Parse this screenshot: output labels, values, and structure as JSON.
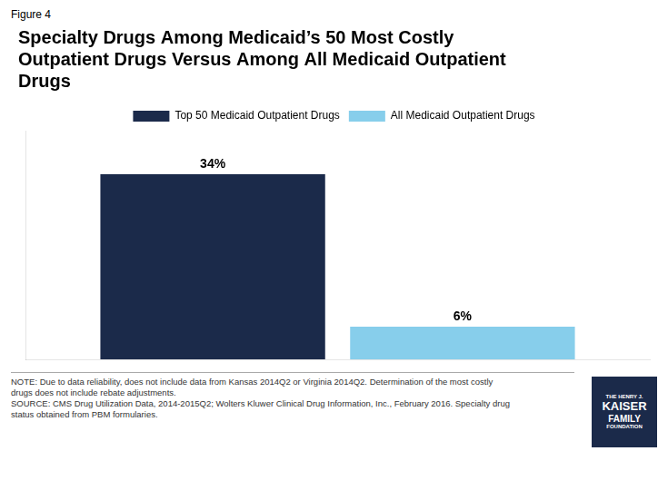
{
  "chart_data": {
    "type": "bar",
    "title": [
      "Specialty Drugs Among Medicaid’s 50 Most Costly",
      "Outpatient Drugs Versus Among All Medicaid Outpatient",
      "Drugs"
    ],
    "annotations": [
      "Figure 4",
      "NOTE: Due to data reliability, does not include data from Kansas 2014Q2 or Virginia 2014Q2. Determination of the most costly",
      "drugs does not include rebate adjustments.",
      "SOURCE: CMS Drug Utilization Data, 2014-2015Q2; Wolters Kluwer Clinical Drug Information, Inc., February 2016. Specialty drug",
      "status obtained from PBM formularies.",
      "THE HENRY J.",
      "KAISER",
      "FAMILY",
      "FOUNDATION"
    ],
    "categories": [
      null
    ],
    "series": [
      {
        "name": "Top 50 Medicaid Outpatient Drugs",
        "color": "#1b2a4a",
        "values": [
          34
        ],
        "value_labels": [
          "34%"
        ]
      },
      {
        "name": "All Medicaid Outpatient Drugs",
        "color": "#87ceeb",
        "values": [
          6
        ],
        "value_labels": [
          "6%"
        ]
      }
    ],
    "ylim": [
      0,
      42
    ],
    "grid": false,
    "legend": "top",
    "data_labels": true,
    "tick_labels": false
  }
}
